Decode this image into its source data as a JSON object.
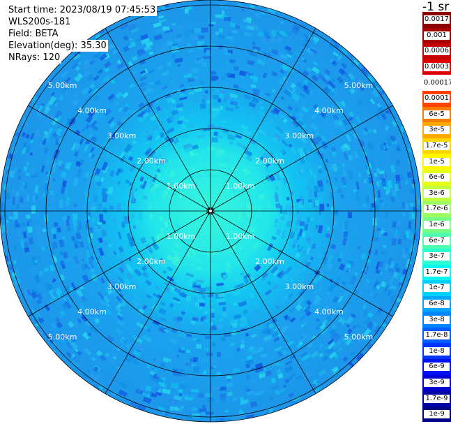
{
  "header": {
    "start_time": "Start time: 2023/08/19 07:45:53",
    "instrument": "WLS200s-181",
    "field": "Field: BETA",
    "elevation": "Elevation(deg): 35.30",
    "nrays": "NRays: 120"
  },
  "colorbar": {
    "unit_label": "-1 sr",
    "ticks": [
      {
        "label": "0.0017",
        "color": "#8b0000"
      },
      {
        "label": "0.001",
        "color": "#a30000"
      },
      {
        "label": "0.0006",
        "color": "#c50000"
      },
      {
        "label": "0.0003",
        "color": "#e00000"
      },
      {
        "label": "0.00017",
        "color": "#ffffff"
      },
      {
        "label": "0.0001",
        "color": "#ff4200"
      },
      {
        "label": "6e-5",
        "color": "#ff7a00"
      },
      {
        "label": "3e-5",
        "color": "#ffa800"
      },
      {
        "label": "1.7e-5",
        "color": "#ffd500"
      },
      {
        "label": "1e-5",
        "color": "#fff700"
      },
      {
        "label": "6e-6",
        "color": "#e6ff1a"
      },
      {
        "label": "3e-6",
        "color": "#c0ff3e"
      },
      {
        "label": "1.7e-6",
        "color": "#9cff62"
      },
      {
        "label": "1e-6",
        "color": "#78ff86"
      },
      {
        "label": "6e-7",
        "color": "#50ffae"
      },
      {
        "label": "3e-7",
        "color": "#2cffd2"
      },
      {
        "label": "1.7e-7",
        "color": "#0cf4f0"
      },
      {
        "label": "1e-7",
        "color": "#00d0ff"
      },
      {
        "label": "6e-8",
        "color": "#00a8ff"
      },
      {
        "label": "3e-8",
        "color": "#0084ff"
      },
      {
        "label": "1.7e-8",
        "color": "#005cff"
      },
      {
        "label": "1e-8",
        "color": "#0034ff"
      },
      {
        "label": "6e-9",
        "color": "#0010f4"
      },
      {
        "label": "3e-9",
        "color": "#0000d0"
      },
      {
        "label": "1.7e-9",
        "color": "#0000a8"
      },
      {
        "label": "1e-9",
        "color": "#000084"
      }
    ]
  },
  "rings": [
    {
      "label": "1.00km"
    },
    {
      "label": "2.00km"
    },
    {
      "label": "3.00km"
    },
    {
      "label": "4.00km"
    },
    {
      "label": "5.00km"
    }
  ],
  "colors": {
    "center": "#2ff0e0",
    "mid": "#18d6f2",
    "outer": "#1aa6ee",
    "dark": "#1668e6",
    "grid": "#000000",
    "label": "#ffffff"
  }
}
